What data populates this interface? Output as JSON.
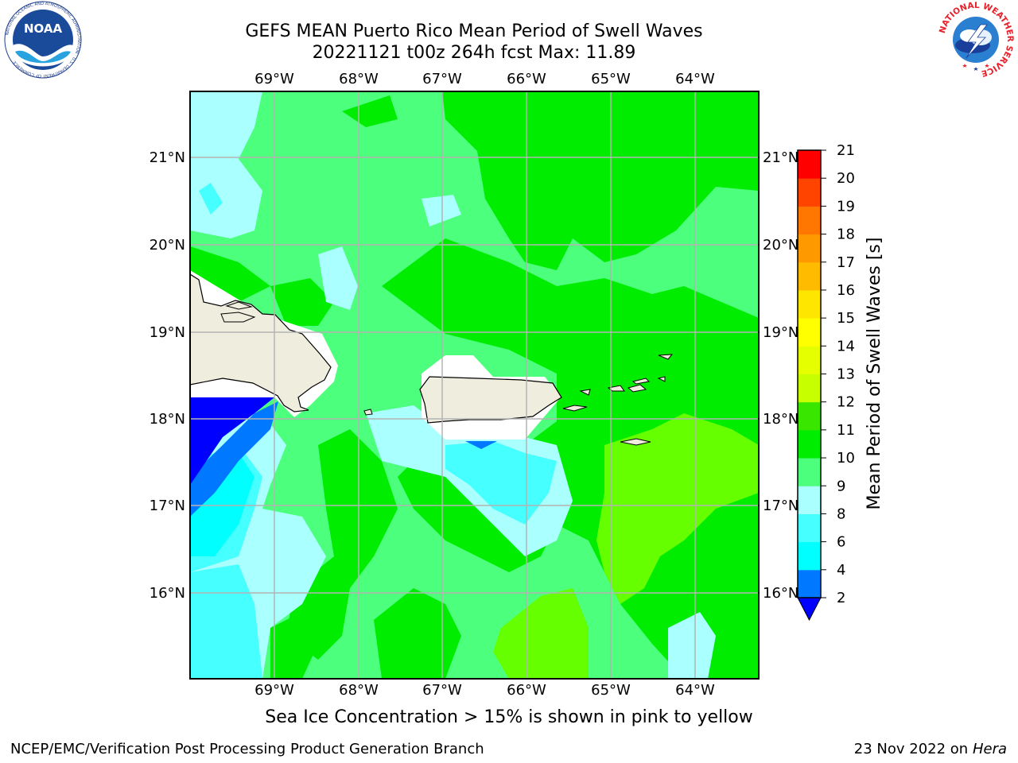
{
  "title": {
    "line1": "GEFS MEAN Puerto Rico Mean Period of Swell Waves",
    "line2": "20221121 t00z 264h fcst   Max: 11.89"
  },
  "logos": {
    "left": {
      "name": "noaa-logo",
      "text": "NOAA",
      "ring_text": "NATIONAL OCEANIC AND ATMOSPHERIC ADMINISTRATION · U.S. DEPARTMENT OF COMMERCE"
    },
    "right": {
      "name": "nws-logo",
      "ring_text": "NATIONAL WEATHER SERVICE"
    }
  },
  "map": {
    "region": "Puerto Rico",
    "lon_ticks": [
      "69°W",
      "68°W",
      "67°W",
      "66°W",
      "65°W",
      "64°W"
    ],
    "lat_ticks": [
      "16°N",
      "17°N",
      "18°N",
      "19°N",
      "20°N",
      "21°N"
    ],
    "lon_range": [
      -70.0,
      -63.25
    ],
    "lat_range": [
      15.0,
      21.75
    ],
    "gridlines": true,
    "land_color": "#efedde",
    "coast_color": "#000000",
    "grid_color": "#b4b4b4"
  },
  "colorbar": {
    "label": "Mean Period of Swell Waves [s]",
    "ticks": [
      "2",
      "4",
      "6",
      "8",
      "9",
      "10",
      "11",
      "12",
      "13",
      "14",
      "15",
      "16",
      "17",
      "18",
      "19",
      "20",
      "21"
    ],
    "bins": [
      {
        "range": [
          2,
          4
        ],
        "color": "#0078ff"
      },
      {
        "range": [
          4,
          6
        ],
        "color": "#00ffff"
      },
      {
        "range": [
          6,
          8
        ],
        "color": "#46ffff"
      },
      {
        "range": [
          8,
          9
        ],
        "color": "#aaffff"
      },
      {
        "range": [
          9,
          10
        ],
        "color": "#4cff7c"
      },
      {
        "range": [
          10,
          11
        ],
        "color": "#00ed00"
      },
      {
        "range": [
          11,
          12
        ],
        "color": "#39e600"
      },
      {
        "range": [
          12,
          13
        ],
        "color": "#c8ff00"
      },
      {
        "range": [
          13,
          14
        ],
        "color": "#e6ff00"
      },
      {
        "range": [
          14,
          15
        ],
        "color": "#ffff00"
      },
      {
        "range": [
          15,
          16
        ],
        "color": "#ffe600"
      },
      {
        "range": [
          16,
          17
        ],
        "color": "#ffbb00"
      },
      {
        "range": [
          17,
          18
        ],
        "color": "#ff9900"
      },
      {
        "range": [
          18,
          19
        ],
        "color": "#ff7700"
      },
      {
        "range": [
          19,
          20
        ],
        "color": "#ff4400"
      },
      {
        "range": [
          20,
          21
        ],
        "color": "#ff0000"
      }
    ],
    "under_color": "#0000ff",
    "extend": "min"
  },
  "note": "Sea Ice Concentration > 15% is shown in pink to yellow",
  "footer": {
    "left": "NCEP/EMC/Verification Post Processing Product Generation Branch",
    "date": "23 Nov 2022 on",
    "host": "Hera"
  }
}
